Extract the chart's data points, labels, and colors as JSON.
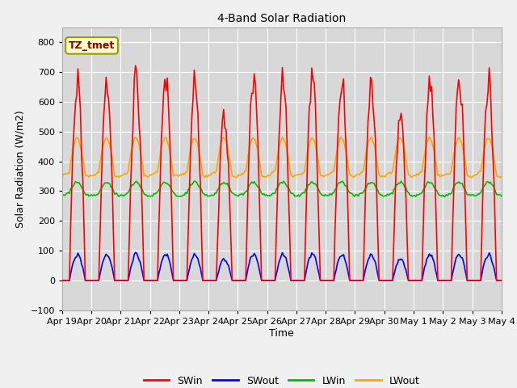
{
  "title": "4-Band Solar Radiation",
  "xlabel": "Time",
  "ylabel": "Solar Radiation (W/m2)",
  "ylim": [
    -100,
    850
  ],
  "yticks": [
    -100,
    0,
    100,
    200,
    300,
    400,
    500,
    600,
    700,
    800
  ],
  "annotation_text": "TZ_tmet",
  "annotation_color": "#8B0000",
  "annotation_bg": "#FFFFCC",
  "annotation_edge": "#999900",
  "legend_labels": [
    "SWin",
    "SWout",
    "LWin",
    "LWout"
  ],
  "legend_colors": [
    "#FF0000",
    "#0000FF",
    "#00BB00",
    "#FFA500"
  ],
  "line_colors": {
    "SWin": "#FF0000",
    "SWout": "#0000FF",
    "LWin": "#00BB00",
    "LWout": "#FFA500"
  },
  "x_tick_labels": [
    "Apr 19",
    "Apr 20",
    "Apr 21",
    "Apr 22",
    "Apr 23",
    "Apr 24",
    "Apr 25",
    "Apr 26",
    "Apr 27",
    "Apr 28",
    "Apr 29",
    "Apr 30",
    "May 1",
    "May 2",
    "May 3",
    "May 4"
  ],
  "fig_color": "#F0F0F0",
  "plot_bg_color": "#D8D8D8",
  "grid_color": "#FFFFFF",
  "n_days": 15,
  "hours_per_day": 24
}
